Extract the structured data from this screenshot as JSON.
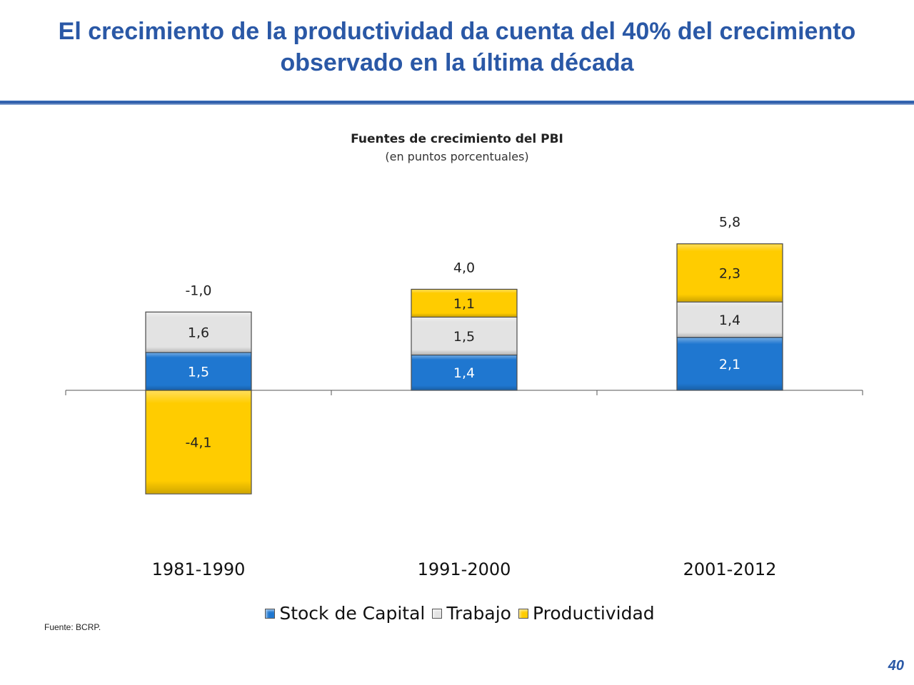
{
  "slide": {
    "title": "El crecimiento de la productividad da cuenta del 40% del crecimiento observado en la última década",
    "source": "Fuente: BCRP.",
    "page_number": "40"
  },
  "colors": {
    "accent": "#2a58a6",
    "capital": "#1f77d0",
    "trabajo": "#e3e3e3",
    "productividad": "#ffcc00"
  },
  "chart_data": {
    "type": "bar",
    "stacked": true,
    "title": "Fuentes de crecimiento del PBI",
    "subtitle": "(en puntos porcentuales)",
    "xlabel": "",
    "ylabel": "",
    "categories": [
      "1981-1990",
      "1991-2000",
      "2001-2012"
    ],
    "series": [
      {
        "name": "Stock de Capital",
        "values": [
          1.5,
          1.4,
          2.1
        ],
        "labels": [
          "1,5",
          "1,4",
          "2,1"
        ]
      },
      {
        "name": "Trabajo",
        "values": [
          1.6,
          1.5,
          1.4
        ],
        "labels": [
          "1,6",
          "1,5",
          "1,4"
        ]
      },
      {
        "name": "Productividad",
        "values": [
          -4.1,
          1.1,
          2.3
        ],
        "labels": [
          "-4,1",
          "1,1",
          "2,3"
        ]
      }
    ],
    "totals": [
      -1.0,
      4.0,
      5.8
    ],
    "total_labels": [
      "-1,0",
      "4,0",
      "5,8"
    ],
    "ylim": [
      -4.5,
      6.5
    ],
    "grid": false,
    "legend_position": "bottom"
  }
}
